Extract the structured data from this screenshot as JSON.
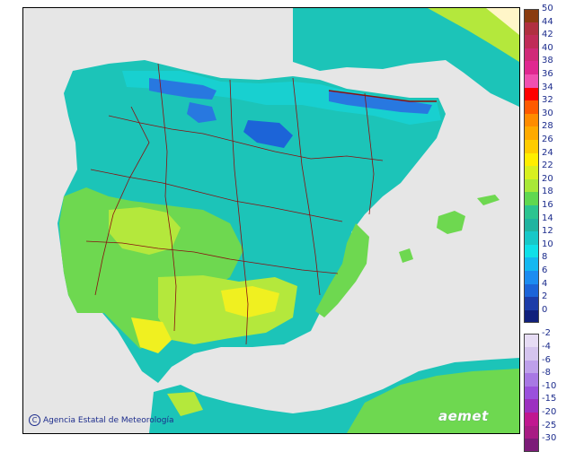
{
  "credit": {
    "text": "Agencia Estatal de Meteorología",
    "logo_symbol": "C"
  },
  "brand": {
    "text": "aemet"
  },
  "map": {
    "subject": "temperature-map-iberian-peninsula",
    "sea_color": "#e6e6e6",
    "land_colors": {
      "land_10_12": "#18d0d0",
      "land_12_14": "#1cc4b8",
      "land_14_16": "#20b49c",
      "land_16_18": "#30c88c",
      "land_18_20": "#6ed850",
      "land_20_22": "#b4e83c",
      "land_22_24": "#f0f020",
      "mountain_6_8": "#2878e0",
      "mountain_2_4": "#1c40a8"
    },
    "border_color": "#8a1010"
  },
  "legend": {
    "upper_scale": [
      {
        "label": "50",
        "color": "#8a3c10"
      },
      {
        "label": "44",
        "color": "#b03040"
      },
      {
        "label": "42",
        "color": "#c02c58"
      },
      {
        "label": "40",
        "color": "#d02a78"
      },
      {
        "label": "38",
        "color": "#e02890"
      },
      {
        "label": "36",
        "color": "#f050b0"
      },
      {
        "label": "34",
        "color": "#ff0000"
      },
      {
        "label": "32",
        "color": "#ff5a00"
      },
      {
        "label": "30",
        "color": "#ff8c00"
      },
      {
        "label": "28",
        "color": "#ffaa00"
      },
      {
        "label": "26",
        "color": "#ffcc00"
      },
      {
        "label": "24",
        "color": "#ffee00"
      },
      {
        "label": "22",
        "color": "#d8f020"
      },
      {
        "label": "20",
        "color": "#a8e838"
      },
      {
        "label": "18",
        "color": "#60d850"
      },
      {
        "label": "16",
        "color": "#2cc490"
      },
      {
        "label": "14",
        "color": "#20b4a0"
      },
      {
        "label": "12",
        "color": "#18c8c8"
      },
      {
        "label": "10",
        "color": "#10e0e8"
      },
      {
        "label": "8",
        "color": "#14b8f0"
      },
      {
        "label": "6",
        "color": "#1c8cf0"
      },
      {
        "label": "4",
        "color": "#1c64d8"
      },
      {
        "label": "2",
        "color": "#1c3ca8"
      },
      {
        "label": "0",
        "color": "#10207c"
      }
    ],
    "lower_scale": [
      {
        "label": "-2",
        "color": "#e6dcf4"
      },
      {
        "label": "-4",
        "color": "#d4c4ee"
      },
      {
        "label": "-6",
        "color": "#bea0ea"
      },
      {
        "label": "-8",
        "color": "#a878e4"
      },
      {
        "label": "-10",
        "color": "#9a50dc"
      },
      {
        "label": "-15",
        "color": "#9c30c0"
      },
      {
        "label": "-20",
        "color": "#c01890"
      },
      {
        "label": "-25",
        "color": "#a81c84"
      },
      {
        "label": "-30",
        "color": "#7c1c78"
      }
    ]
  }
}
